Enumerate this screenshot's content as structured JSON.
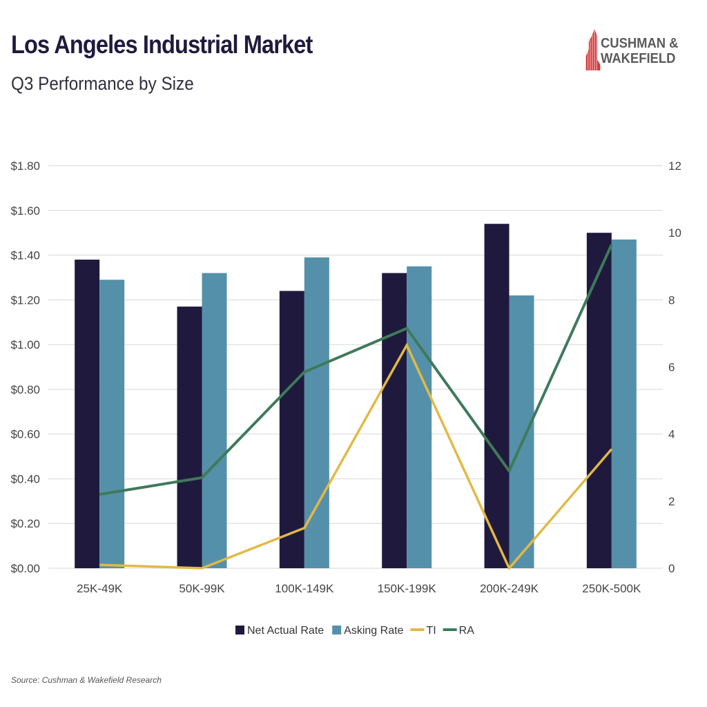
{
  "header": {
    "title": "Los Angeles Industrial Market",
    "subtitle": "Q3 Performance by Size",
    "logo_text_line1": "CUSHMAN &",
    "logo_text_line2": "WAKEFIELD"
  },
  "footer": {
    "source": "Source: Cushman & Wakefield Research"
  },
  "colors": {
    "net": "#1f1a3d",
    "asking": "#5590aa",
    "ti": "#e2b944",
    "ra": "#3f7a5a",
    "grid": "#e3e3e3",
    "logo": "#d33a3a"
  },
  "chart_data": {
    "type": "bar",
    "title": "Los Angeles Industrial Market",
    "subtitle": "Q3 Performance by Size",
    "categories": [
      "25K-49K",
      "50K-99K",
      "100K-149K",
      "150K-199K",
      "200K-249K",
      "250K-500K"
    ],
    "series": [
      {
        "name": "Net Actual Rate",
        "type": "bar",
        "axis": "left",
        "values": [
          1.38,
          1.17,
          1.24,
          1.32,
          1.54,
          1.5
        ]
      },
      {
        "name": "Asking Rate",
        "type": "bar",
        "axis": "left",
        "values": [
          1.29,
          1.32,
          1.39,
          1.35,
          1.22,
          1.47
        ]
      },
      {
        "name": "TI",
        "type": "line",
        "axis": "right",
        "values": [
          0.1,
          0.0,
          1.2,
          6.65,
          0.0,
          3.55
        ]
      },
      {
        "name": "RA",
        "type": "line",
        "axis": "right",
        "values": [
          2.2,
          2.7,
          5.85,
          7.15,
          2.9,
          9.65
        ]
      }
    ],
    "yleft": {
      "lim": [
        0,
        1.8
      ],
      "ticks": [
        "$0.00",
        "$0.20",
        "$0.40",
        "$0.60",
        "$0.80",
        "$1.00",
        "$1.20",
        "$1.40",
        "$1.60",
        "$1.80"
      ]
    },
    "yright": {
      "lim": [
        0,
        12
      ],
      "ticks": [
        "0",
        "2",
        "4",
        "6",
        "8",
        "10",
        "12"
      ]
    },
    "grid": true,
    "legend": "bottom"
  }
}
